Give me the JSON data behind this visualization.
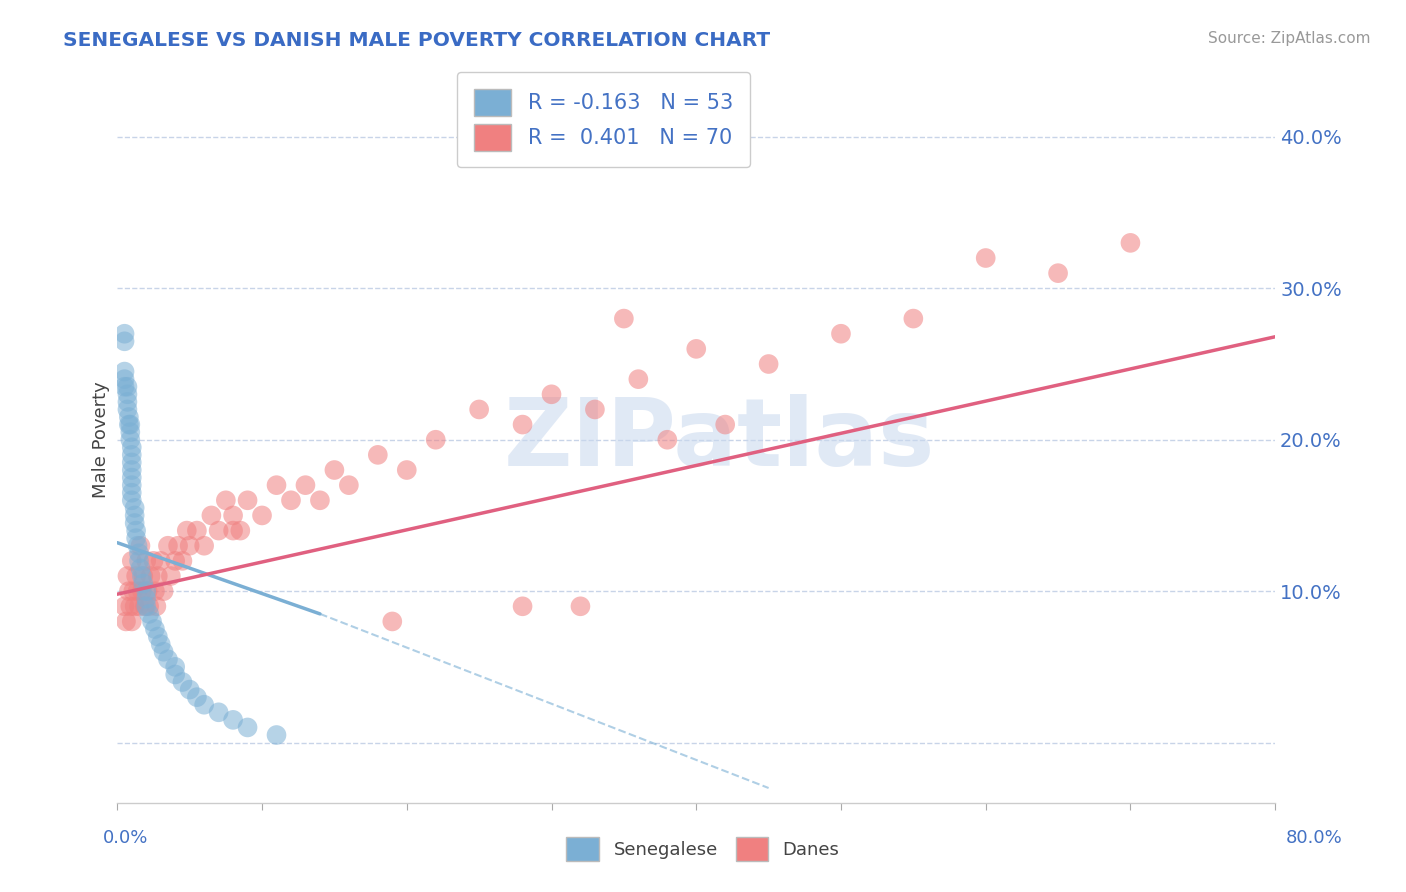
{
  "title": "SENEGALESE VS DANISH MALE POVERTY CORRELATION CHART",
  "source": "Source: ZipAtlas.com",
  "ylabel": "Male Poverty",
  "yticks": [
    0.0,
    0.1,
    0.2,
    0.3,
    0.4
  ],
  "ytick_labels": [
    "",
    "10.0%",
    "20.0%",
    "30.0%",
    "40.0%"
  ],
  "xlim": [
    0.0,
    0.8
  ],
  "ylim": [
    -0.04,
    0.44
  ],
  "senegalese_color": "#7BAFD4",
  "danes_color": "#F08080",
  "background_color": "#ffffff",
  "grid_color": "#c8d4e8",
  "watermark_text": "ZIPatlas",
  "senegalese_R": -0.163,
  "senegalese_N": 53,
  "danes_R": 0.401,
  "danes_N": 70,
  "sen_line_x0": 0.0,
  "sen_line_x1": 0.14,
  "sen_line_y0": 0.132,
  "sen_line_y1": 0.085,
  "sen_line_dash_x0": 0.14,
  "sen_line_dash_x1": 0.45,
  "sen_line_dash_y0": 0.085,
  "sen_line_dash_y1": -0.03,
  "dan_line_x0": 0.0,
  "dan_line_x1": 0.8,
  "dan_line_y0": 0.098,
  "dan_line_y1": 0.268,
  "senegalese_scatter_x": [
    0.005,
    0.005,
    0.005,
    0.005,
    0.005,
    0.007,
    0.007,
    0.007,
    0.007,
    0.008,
    0.008,
    0.009,
    0.009,
    0.009,
    0.01,
    0.01,
    0.01,
    0.01,
    0.01,
    0.01,
    0.01,
    0.01,
    0.012,
    0.012,
    0.012,
    0.013,
    0.013,
    0.014,
    0.015,
    0.015,
    0.016,
    0.017,
    0.018,
    0.02,
    0.02,
    0.02,
    0.022,
    0.024,
    0.026,
    0.028,
    0.03,
    0.032,
    0.035,
    0.04,
    0.04,
    0.045,
    0.05,
    0.055,
    0.06,
    0.07,
    0.08,
    0.09,
    0.11
  ],
  "senegalese_scatter_y": [
    0.265,
    0.27,
    0.245,
    0.24,
    0.235,
    0.235,
    0.23,
    0.225,
    0.22,
    0.215,
    0.21,
    0.21,
    0.205,
    0.2,
    0.195,
    0.19,
    0.185,
    0.18,
    0.175,
    0.17,
    0.165,
    0.16,
    0.155,
    0.15,
    0.145,
    0.14,
    0.135,
    0.13,
    0.125,
    0.12,
    0.115,
    0.11,
    0.105,
    0.1,
    0.095,
    0.09,
    0.085,
    0.08,
    0.075,
    0.07,
    0.065,
    0.06,
    0.055,
    0.05,
    0.045,
    0.04,
    0.035,
    0.03,
    0.025,
    0.02,
    0.015,
    0.01,
    0.005
  ],
  "danes_scatter_x": [
    0.005,
    0.006,
    0.007,
    0.008,
    0.009,
    0.01,
    0.01,
    0.011,
    0.012,
    0.013,
    0.014,
    0.015,
    0.016,
    0.017,
    0.018,
    0.019,
    0.02,
    0.021,
    0.022,
    0.023,
    0.025,
    0.026,
    0.027,
    0.028,
    0.03,
    0.032,
    0.035,
    0.037,
    0.04,
    0.042,
    0.045,
    0.048,
    0.05,
    0.055,
    0.06,
    0.065,
    0.07,
    0.075,
    0.08,
    0.085,
    0.09,
    0.1,
    0.11,
    0.12,
    0.13,
    0.14,
    0.15,
    0.16,
    0.18,
    0.2,
    0.22,
    0.25,
    0.28,
    0.3,
    0.33,
    0.36,
    0.4,
    0.45,
    0.5,
    0.55,
    0.6,
    0.65,
    0.7,
    0.35,
    0.42,
    0.38,
    0.28,
    0.32,
    0.19,
    0.08
  ],
  "danes_scatter_y": [
    0.09,
    0.08,
    0.11,
    0.1,
    0.09,
    0.12,
    0.08,
    0.1,
    0.09,
    0.11,
    0.1,
    0.09,
    0.13,
    0.1,
    0.11,
    0.09,
    0.12,
    0.1,
    0.09,
    0.11,
    0.12,
    0.1,
    0.09,
    0.11,
    0.12,
    0.1,
    0.13,
    0.11,
    0.12,
    0.13,
    0.12,
    0.14,
    0.13,
    0.14,
    0.13,
    0.15,
    0.14,
    0.16,
    0.15,
    0.14,
    0.16,
    0.15,
    0.17,
    0.16,
    0.17,
    0.16,
    0.18,
    0.17,
    0.19,
    0.18,
    0.2,
    0.22,
    0.21,
    0.23,
    0.22,
    0.24,
    0.26,
    0.25,
    0.27,
    0.28,
    0.32,
    0.31,
    0.33,
    0.28,
    0.21,
    0.2,
    0.09,
    0.09,
    0.08,
    0.14
  ]
}
